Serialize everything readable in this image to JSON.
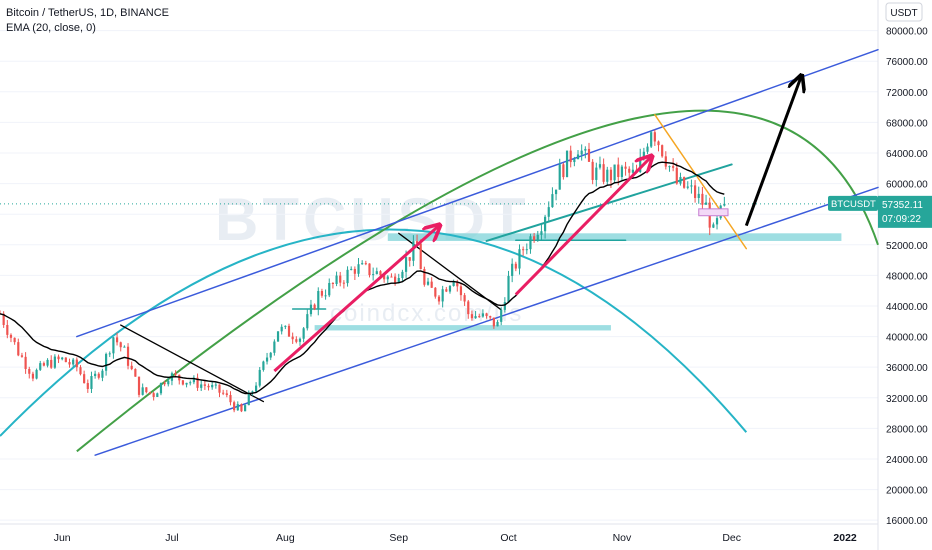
{
  "legend": {
    "symbol_line": "Bitcoin / TetherUS, 1D, BINANCE",
    "indicator_line": "EMA (20, close, 0)"
  },
  "watermark": {
    "symbol": "BTCUSDT",
    "site": "coindcx.com/us"
  },
  "price_badge": {
    "symbol": "BTCUSDT",
    "price": "57352.11",
    "countdown": "07:09:22"
  },
  "currency_button": "USDT",
  "colors": {
    "up": "#26a69a",
    "down": "#ef5350",
    "ema": "#000000",
    "channel": "#3b5bdb",
    "arc_green": "#43a047",
    "arc_cyan": "#26b4c6",
    "support": "#7dd3d8",
    "pink_arrow": "#e91e63",
    "orange": "#f5a623",
    "purple": "#c77dd1",
    "badge": "#26a69a"
  },
  "chart_data": {
    "type": "candlestick",
    "title": "Bitcoin / TetherUS, 1D, BINANCE",
    "xlabel": "",
    "ylabel": "",
    "x_ticks": [
      "Jun",
      "Jul",
      "Aug",
      "Sep",
      "Oct",
      "Nov",
      "Dec",
      "2022"
    ],
    "y_ticks": [
      16000,
      20000,
      24000,
      28000,
      32000,
      36000,
      40000,
      44000,
      48000,
      52000,
      56000,
      60000,
      64000,
      68000,
      72000,
      76000,
      80000
    ],
    "y_tick_labels": [
      "16000.00",
      "20000.00",
      "24000.00",
      "28000.00",
      "32000.00",
      "36000.00",
      "40000.00",
      "44000.00",
      "48000.00",
      "52000.00",
      "56000.00",
      "60000.00",
      "64000.00",
      "68000.00",
      "72000.00",
      "76000.00",
      "80000.00"
    ],
    "ylim": [
      15500,
      84000
    ],
    "date_range": [
      "2021-05-15",
      "2022-01-10"
    ],
    "last_price": 57352.11,
    "candles": [],
    "anchors": [
      [
        "2021-05-15",
        43000
      ],
      [
        "2021-05-20",
        38000
      ],
      [
        "2021-05-24",
        35000
      ],
      [
        "2021-05-28",
        36500
      ],
      [
        "2021-06-01",
        37000
      ],
      [
        "2021-06-05",
        36000
      ],
      [
        "2021-06-08",
        33500
      ],
      [
        "2021-06-12",
        36000
      ],
      [
        "2021-06-15",
        40000
      ],
      [
        "2021-06-18",
        38000
      ],
      [
        "2021-06-22",
        33000
      ],
      [
        "2021-06-26",
        32500
      ],
      [
        "2021-06-30",
        35000
      ],
      [
        "2021-07-03",
        34500
      ],
      [
        "2021-07-07",
        34000
      ],
      [
        "2021-07-11",
        33500
      ],
      [
        "2021-07-15",
        32500
      ],
      [
        "2021-07-20",
        30000
      ],
      [
        "2021-07-25",
        35000
      ],
      [
        "2021-07-30",
        41000
      ],
      [
        "2021-08-05",
        40000
      ],
      [
        "2021-08-10",
        45500
      ],
      [
        "2021-08-15",
        47000
      ],
      [
        "2021-08-20",
        49000
      ],
      [
        "2021-08-25",
        48500
      ],
      [
        "2021-08-30",
        47500
      ],
      [
        "2021-09-03",
        50000
      ],
      [
        "2021-09-06",
        52000
      ],
      [
        "2021-09-08",
        46500
      ],
      [
        "2021-09-12",
        45500
      ],
      [
        "2021-09-16",
        48000
      ],
      [
        "2021-09-20",
        43000
      ],
      [
        "2021-09-24",
        42500
      ],
      [
        "2021-09-28",
        41500
      ],
      [
        "2021-10-01",
        47500
      ],
      [
        "2021-10-05",
        51500
      ],
      [
        "2021-10-10",
        55000
      ],
      [
        "2021-10-15",
        61500
      ],
      [
        "2021-10-20",
        65000
      ],
      [
        "2021-10-24",
        61500
      ],
      [
        "2021-10-28",
        61000
      ],
      [
        "2021-11-01",
        61500
      ],
      [
        "2021-11-05",
        61000
      ],
      [
        "2021-11-09",
        67500
      ],
      [
        "2021-11-12",
        64500
      ],
      [
        "2021-11-16",
        60000
      ],
      [
        "2021-11-20",
        59000
      ],
      [
        "2021-11-24",
        57000
      ],
      [
        "2021-11-26",
        53500
      ],
      [
        "2021-11-29",
        57352
      ]
    ],
    "ema_period": 20,
    "annotations": {
      "channel_lines": [
        [
          [
            "2021-06-05",
            40000
          ],
          [
            "2022-01-10",
            77500
          ]
        ],
        [
          [
            "2021-06-10",
            24500
          ],
          [
            "2022-01-10",
            59500
          ]
        ]
      ],
      "green_arc": {
        "start": [
          "2021-06-05",
          25000
        ],
        "peak": [
          "2021-10-31",
          68000
        ],
        "end": [
          "2022-01-10",
          52000
        ]
      },
      "cyan_arc": {
        "start": [
          "2021-05-15",
          27000
        ],
        "peak": [
          "2021-08-29",
          54000
        ],
        "end": [
          "2021-12-05",
          27500
        ]
      },
      "descending_lines": [
        [
          [
            "2021-06-17",
            41500
          ],
          [
            "2021-07-26",
            31500
          ]
        ],
        [
          [
            "2021-09-01",
            53500
          ],
          [
            "2021-09-29",
            43500
          ]
        ],
        [
          [
            "2021-11-10",
            69000
          ],
          [
            "2021-12-05",
            51500
          ]
        ]
      ],
      "teal_line": [
        [
          "2021-09-25",
          52500
        ],
        [
          "2021-12-01",
          62500
        ]
      ],
      "support_zones": [
        [
          [
            "2021-08-29",
            52500
          ],
          [
            "2021-12-31",
            53500
          ]
        ],
        [
          [
            "2021-08-09",
            40800
          ],
          [
            "2021-10-29",
            41500
          ]
        ]
      ],
      "short_h_lines": [
        [
          [
            "2021-08-03",
            43600
          ],
          [
            "2021-08-12",
            43600
          ]
        ],
        [
          [
            "2021-10-03",
            52600
          ],
          [
            "2021-11-02",
            52600
          ]
        ]
      ],
      "pink_arrows": [
        [
          [
            "2021-07-29",
            35500
          ],
          [
            "2021-09-12",
            54500
          ]
        ],
        [
          [
            "2021-10-03",
            45500
          ],
          [
            "2021-11-09",
            63500
          ]
        ]
      ],
      "black_arrow": [
        [
          "2021-12-05",
          54500
        ],
        [
          "2021-12-20",
          74000
        ]
      ],
      "purple_box": [
        [
          "2021-11-22",
          55800
        ],
        [
          "2021-11-30",
          56700
        ]
      ]
    }
  }
}
